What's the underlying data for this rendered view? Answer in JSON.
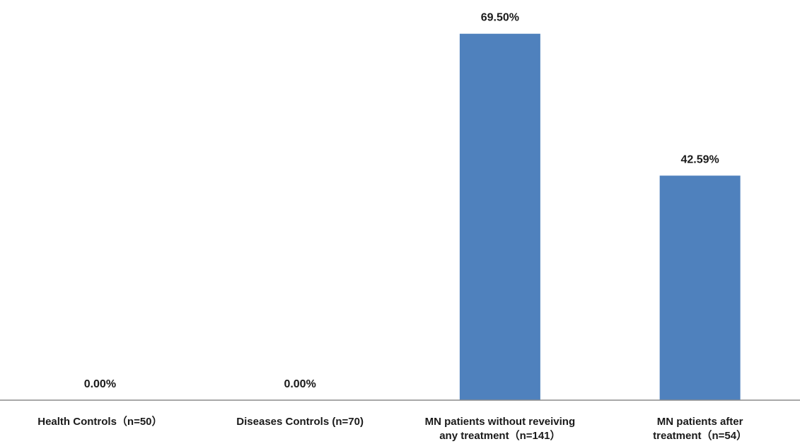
{
  "chart_data": {
    "type": "bar",
    "categories": [
      [
        "Health Controls（n=50）"
      ],
      [
        "Diseases Controls (n=70)"
      ],
      [
        "MN patients without reveiving",
        "any treatment（n=141）"
      ],
      [
        "MN patients after",
        "treatment（n=54）"
      ]
    ],
    "values": [
      0.0,
      0.0,
      69.5,
      42.59
    ],
    "data_labels": [
      "0.00%",
      "0.00%",
      "69.50%",
      "42.59%"
    ],
    "title": "",
    "xlabel": "",
    "ylabel": "",
    "ylim": [
      0,
      70
    ],
    "grid": false,
    "legend": "none",
    "bar_color": "#4f81bd",
    "axis_color": "#8c8c8c"
  }
}
